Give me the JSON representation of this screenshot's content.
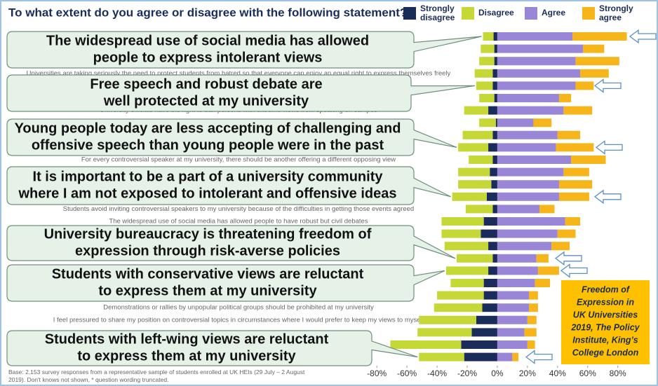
{
  "chart_data": {
    "type": "diverging_bar",
    "title": "To what extent do you agree or disagree with the following statement?",
    "categories": [
      null,
      null,
      null,
      "Universities are taking seriously the need to protect students from hatred so that everyone can enjoy an equal right to express themselves freely",
      null,
      null,
      "University officials have the right to ban persons with extreme views from speaking on campus",
      null,
      null,
      null,
      "For every controversial speaker at my university, there should be another offering a different opposing view",
      null,
      null,
      null,
      "Students avoid inviting controversial speakers to my university because of the difficulties in getting those events agreed",
      "The widespread use of social media has allowed people to have robust but civil debates",
      null,
      null,
      null,
      null,
      null,
      null,
      "Demonstrations or rallies by unpopular political groups should be prohibited at my university",
      "I feel pressured to share my position on controversial topics in circumstances where I would prefer to keep my views to myself",
      null,
      null,
      null
    ],
    "series": [
      {
        "name": "Strongly disagree",
        "color": "#1a2d5a",
        "side": "negative",
        "values": [
          2.5,
          2,
          2,
          3,
          3,
          2,
          6,
          1,
          3,
          6,
          3,
          5,
          4,
          7,
          3,
          9,
          11,
          6,
          3,
          6,
          9,
          9,
          10,
          14,
          17,
          24,
          22
        ]
      },
      {
        "name": "Disagree",
        "color": "#c5d835",
        "side": "negative",
        "values": [
          7,
          9,
          10,
          12,
          11,
          10,
          16,
          11,
          20,
          20,
          16,
          21,
          22,
          23,
          18,
          28,
          26,
          29,
          24,
          28,
          22,
          31,
          32,
          38,
          36,
          47,
          30
        ]
      },
      {
        "name": "Agree",
        "color": "#9a86d6",
        "side": "positive",
        "values": [
          50,
          57,
          52,
          55,
          52,
          41,
          44,
          24,
          40,
          39,
          49,
          44,
          41,
          41,
          28,
          45,
          40,
          36,
          26,
          27,
          25,
          21,
          21,
          20,
          18,
          20,
          10
        ]
      },
      {
        "name": "Strongly agree",
        "color": "#f5b51b",
        "side": "positive",
        "values": [
          36,
          14,
          29,
          19,
          12,
          8,
          19,
          12,
          15,
          25,
          23,
          17,
          22,
          20,
          10,
          10,
          12,
          12,
          8,
          14,
          10,
          6,
          6,
          6,
          8,
          5,
          4
        ]
      }
    ],
    "xlim": [
      -88,
      89
    ],
    "xticks": [
      {
        "value": -80,
        "label": "-80%"
      },
      {
        "value": -60,
        "label": "-60%"
      },
      {
        "value": -40,
        "label": "-40%"
      },
      {
        "value": -20,
        "label": "-20%"
      },
      {
        "value": 0,
        "label": "0%"
      },
      {
        "value": 20,
        "label": "20%"
      },
      {
        "value": 40,
        "label": "40%"
      },
      {
        "value": 60,
        "label": "60%"
      },
      {
        "value": 80,
        "label": "80%"
      }
    ],
    "source": "Base: 2,153 survey responses from a representative sample of students enrolled at UK HEIs (29 July – 2 August 2019). Don't knows not shown, * question wording truncated.",
    "note": [
      "Freedom of",
      "Expression in",
      "UK Universities",
      "2019, The Policy",
      "Institute, King’s",
      "College London"
    ],
    "annotations": [
      {
        "row": 0,
        "lines": [
          "The widespread use of social media has allowed",
          "people to express intolerant views"
        ]
      },
      {
        "row": 4,
        "lines": [
          "Free speech and robust debate are",
          "well protected at my university"
        ]
      },
      {
        "row": 9,
        "lines": [
          "Young people today are less accepting of challenging and",
          "offensive speech than young people were in the past"
        ]
      },
      {
        "row": 13,
        "lines": [
          "It is important to be a part of a university community",
          "where I am not exposed to intolerant and offensive ideas"
        ]
      },
      {
        "row": 18,
        "lines": [
          "University bureaucracy is threatening freedom of",
          "expression through risk-averse policies"
        ]
      },
      {
        "row": 19,
        "lines": [
          "Students with conservative views are reluctant",
          "to express them at my university"
        ]
      },
      {
        "row": 26,
        "lines": [
          "Students with left-wing views are reluctant",
          "to express them at my university"
        ]
      }
    ]
  }
}
